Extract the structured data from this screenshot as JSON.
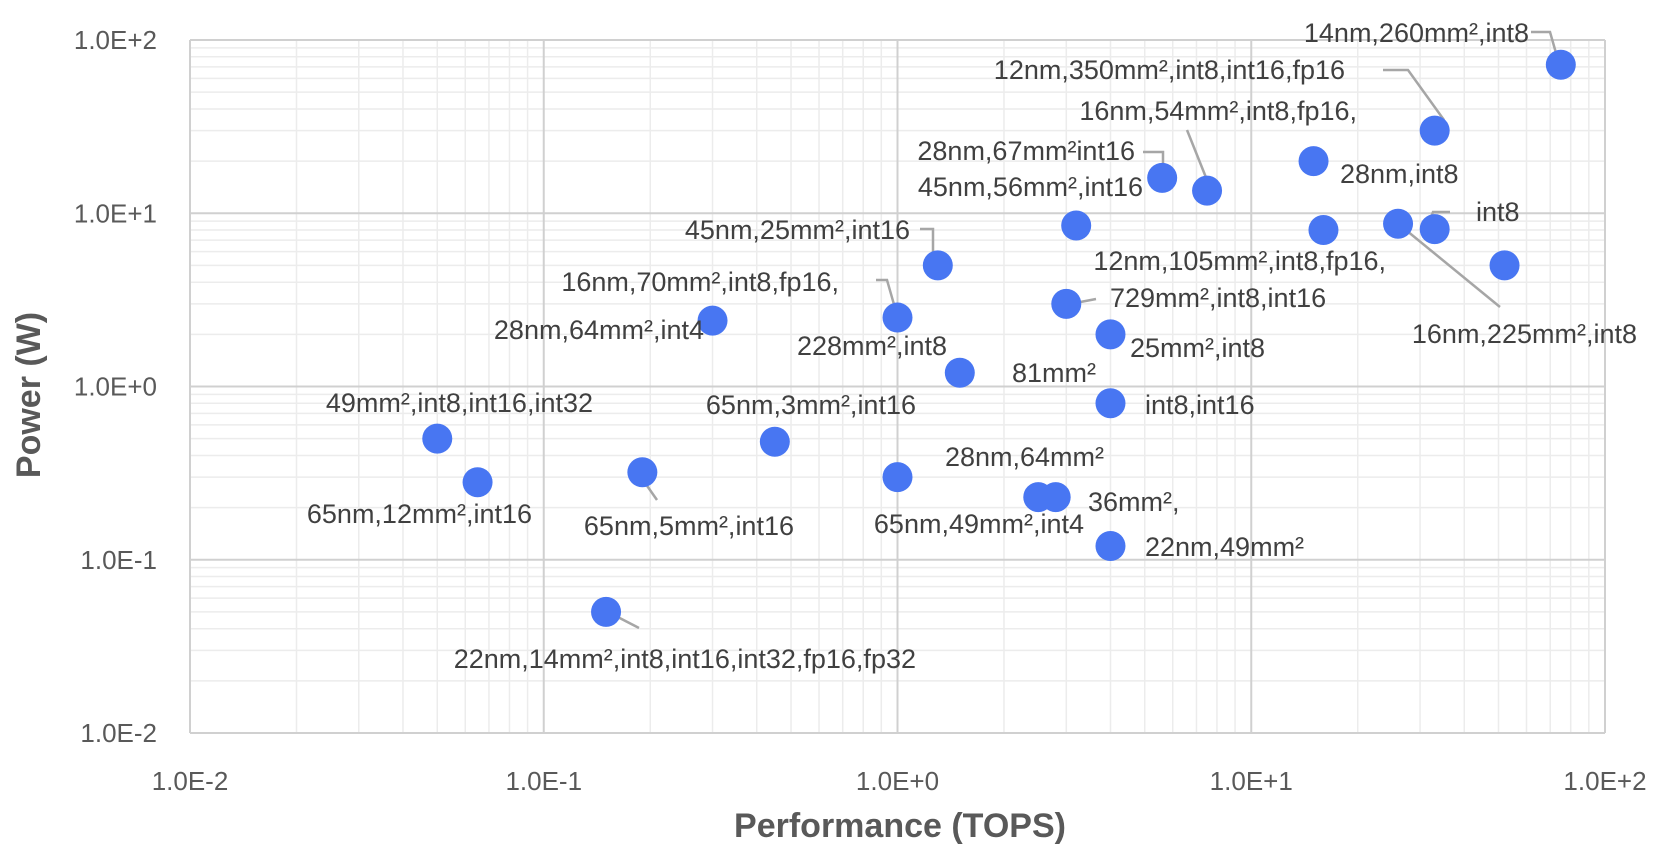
{
  "chart_data": {
    "type": "scatter",
    "xlabel": "Performance (TOPS)",
    "ylabel": "Power (W)",
    "x_scale": "log",
    "y_scale": "log",
    "xlim": [
      0.01,
      100
    ],
    "ylim": [
      0.01,
      100
    ],
    "x_ticks": [
      "1.0E-2",
      "1.0E-1",
      "1.0E+0",
      "1.0E+1",
      "1.0E+2"
    ],
    "y_ticks": [
      "1.0E-2",
      "1.0E-1",
      "1.0E+0",
      "1.0E+1",
      "1.0E+2"
    ],
    "grid": true,
    "marker_color": "#4876f2",
    "points": [
      {
        "x": 75,
        "y": 72
      },
      {
        "x": 33,
        "y": 30
      },
      {
        "x": 15,
        "y": 20
      },
      {
        "x": 5.6,
        "y": 16
      },
      {
        "x": 7.5,
        "y": 13.5
      },
      {
        "x": 3.2,
        "y": 8.5
      },
      {
        "x": 16,
        "y": 8
      },
      {
        "x": 26,
        "y": 8.7
      },
      {
        "x": 33,
        "y": 8.1
      },
      {
        "x": 52,
        "y": 5
      },
      {
        "x": 1.3,
        "y": 5
      },
      {
        "x": 3.0,
        "y": 3.0
      },
      {
        "x": 4.0,
        "y": 2.0
      },
      {
        "x": 0.3,
        "y": 2.4
      },
      {
        "x": 1.0,
        "y": 2.5
      },
      {
        "x": 1.5,
        "y": 1.2
      },
      {
        "x": 4.0,
        "y": 0.8
      },
      {
        "x": 0.05,
        "y": 0.5
      },
      {
        "x": 0.45,
        "y": 0.48
      },
      {
        "x": 0.065,
        "y": 0.28
      },
      {
        "x": 0.19,
        "y": 0.32
      },
      {
        "x": 1.0,
        "y": 0.3
      },
      {
        "x": 2.5,
        "y": 0.23
      },
      {
        "x": 2.8,
        "y": 0.23
      },
      {
        "x": 4.0,
        "y": 0.12
      },
      {
        "x": 0.15,
        "y": 0.05
      }
    ],
    "annotations": [
      "14nm,260mm²,int8",
      "12nm,350mm²,int8,int16,fp16",
      "16nm,54mm²,int8,fp16,",
      "28nm,67mm²int16",
      "28nm,int8",
      "45nm,56mm²,int16",
      "int8",
      "45nm,25mm²,int16",
      "12nm,105mm²,int8,fp16,",
      "16nm,70mm²,int8,fp16,",
      "729mm²,int8,int16",
      "16nm,225mm²,int8",
      "28nm,64mm²,int4",
      "25mm²,int8",
      "228mm²,int8",
      "81mm²",
      "49mm²,int8,int16,int32",
      "65nm,3mm²,int16",
      "int8,int16",
      "28nm,64mm²",
      "65nm,12mm²,int16",
      "36mm²,",
      "65nm,5mm²,int16",
      "65nm,49mm²,int4",
      "22nm,49mm²",
      "22nm,14mm²,int8,int16,int32,fp16,fp32"
    ]
  }
}
